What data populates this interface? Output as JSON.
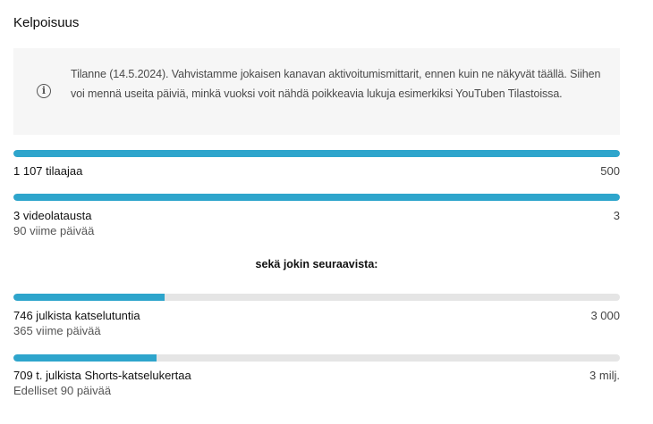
{
  "title": "Kelpoisuus",
  "info": {
    "icon": "info-icon",
    "text": "Tilanne (14.5.2024). Vahvistamme jokaisen kanavan aktivoitumismittarit, ennen kuin ne näkyvät täällä. Siihen voi mennä useita päiviä, minkä vuoksi voit nähdä poikkeavia lukuja esimerkiksi YouTuben Tilastoissa."
  },
  "colors": {
    "accent": "#2ea5cc",
    "track": "#e5e5e5",
    "info_bg": "#f6f6f6"
  },
  "requirements": [
    {
      "label": "1 107 tilaajaa",
      "sublabel": "",
      "goal": "500",
      "progress": 1.0
    },
    {
      "label": "3 videolatausta",
      "sublabel": "90 viime päivää",
      "goal": "3",
      "progress": 1.0
    }
  ],
  "or_label": "sekä jokin seuraavista:",
  "alternatives": [
    {
      "label": "746 julkista katselutuntia",
      "sublabel": "365 viime päivää",
      "goal": "3 000",
      "progress": 0.249
    },
    {
      "label": "709 t. julkista Shorts-katselukertaa",
      "sublabel": "Edelliset 90 päivää",
      "goal": "3 milj.",
      "progress": 0.236
    }
  ]
}
